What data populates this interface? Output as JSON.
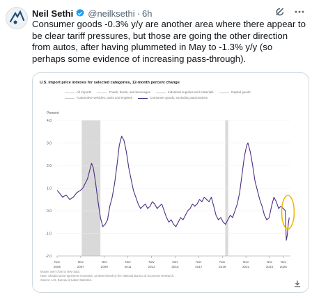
{
  "tweet": {
    "author_name": "Neil Sethi",
    "handle": "@neilksethi",
    "separator": "·",
    "time": "6h",
    "text": "Consumer goods -0.3% y/y are another area where there appear to be clear tariff pressures, but those are going the other direction from autos, after having plummeted in May to -1.3% y/y (so perhaps some evidence of increasing pass-through)."
  },
  "colors": {
    "series_main": "#4b2e83",
    "series_other": "#c8c8c8",
    "recession": "#d9d9d9",
    "highlight": "#f2b705",
    "verified": "#1d9bf0"
  },
  "icons": [
    "avatar",
    "verified-badge-icon",
    "grok-icon",
    "more-icon",
    "download-icon"
  ],
  "chart_data": {
    "type": "line",
    "title": "U.S. import price indexes for selected categories, 12-month percent change",
    "ylabel": "Percent",
    "ylim": [
      -2.0,
      4.0
    ],
    "yticks": [
      4.0,
      3.0,
      2.0,
      1.0,
      0.0,
      -1.0,
      -2.0
    ],
    "ytick_labels": [
      "4.0",
      "3.0",
      "2.0",
      "1.0",
      "0.0",
      "-1.0",
      "-2.0"
    ],
    "xlim": [
      2005.83,
      2025.6
    ],
    "xticks": [
      2005.83,
      2007.83,
      2009.83,
      2011.83,
      2013.83,
      2015.83,
      2017.83,
      2019.83,
      2021.83,
      2023.83,
      2025.0
    ],
    "xtick_labels": [
      [
        "Nov",
        "2005"
      ],
      [
        "Nov",
        "2007"
      ],
      [
        "Nov",
        "2009"
      ],
      [
        "Nov",
        "2011"
      ],
      [
        "Nov",
        "2013"
      ],
      [
        "Nov",
        "2015"
      ],
      [
        "Nov",
        "2017"
      ],
      [
        "Nov",
        "2019"
      ],
      [
        "Nov",
        "2021"
      ],
      [
        "Nov",
        "2023"
      ],
      [
        "Nov",
        "2025"
      ]
    ],
    "recessions": [
      [
        2007.92,
        2009.5
      ],
      [
        2020.08,
        2020.33
      ]
    ],
    "legend": [
      [
        "All imports",
        "Foods, feeds, and beverages",
        "Industrial supplies and materials",
        "Capital goods"
      ],
      [
        "Automotive vehicles, parts and engines",
        "Consumer goods, excluding automotives"
      ]
    ],
    "highlighted_series": "Consumer goods, excluding automotives",
    "series": [
      {
        "name": "Consumer goods, excluding automotives",
        "x": [
          2005.83,
          2006.0,
          2006.3,
          2006.6,
          2006.9,
          2007.2,
          2007.5,
          2007.8,
          2008.0,
          2008.2,
          2008.4,
          2008.6,
          2008.75,
          2008.9,
          2009.1,
          2009.3,
          2009.5,
          2009.7,
          2009.9,
          2010.1,
          2010.3,
          2010.5,
          2010.7,
          2010.9,
          2011.1,
          2011.3,
          2011.5,
          2011.7,
          2011.9,
          2012.1,
          2012.3,
          2012.5,
          2012.7,
          2012.9,
          2013.1,
          2013.3,
          2013.5,
          2013.7,
          2013.9,
          2014.1,
          2014.3,
          2014.5,
          2014.7,
          2014.9,
          2015.1,
          2015.3,
          2015.5,
          2015.7,
          2015.9,
          2016.1,
          2016.3,
          2016.5,
          2016.7,
          2016.9,
          2017.1,
          2017.3,
          2017.5,
          2017.7,
          2017.9,
          2018.1,
          2018.3,
          2018.5,
          2018.7,
          2018.9,
          2019.1,
          2019.3,
          2019.5,
          2019.7,
          2019.9,
          2020.1,
          2020.3,
          2020.5,
          2020.7,
          2020.9,
          2021.1,
          2021.3,
          2021.5,
          2021.7,
          2021.9,
          2022.0,
          2022.2,
          2022.4,
          2022.6,
          2022.8,
          2023.0,
          2023.2,
          2023.4,
          2023.6,
          2023.8,
          2024.0,
          2024.2,
          2024.4,
          2024.6,
          2024.8,
          2025.0,
          2025.17,
          2025.25,
          2025.33,
          2025.42,
          2025.5
        ],
        "values": [
          0.9,
          0.8,
          0.6,
          0.7,
          0.5,
          0.6,
          0.8,
          0.9,
          1.0,
          1.2,
          1.4,
          1.8,
          2.1,
          1.9,
          1.2,
          0.4,
          -0.3,
          -0.7,
          -0.6,
          -0.4,
          0.2,
          0.6,
          1.2,
          2.0,
          2.9,
          3.3,
          3.1,
          2.6,
          1.9,
          1.4,
          0.9,
          0.6,
          0.3,
          0.1,
          0.2,
          0.3,
          0.1,
          0.2,
          0.4,
          0.3,
          0.1,
          0.2,
          0.3,
          0.0,
          -0.3,
          -0.5,
          -0.4,
          -0.6,
          -0.7,
          -0.5,
          -0.3,
          -0.4,
          -0.2,
          0.0,
          0.1,
          0.3,
          0.2,
          0.3,
          0.5,
          0.4,
          0.6,
          0.5,
          0.4,
          0.6,
          0.2,
          -0.2,
          -0.4,
          -0.3,
          -0.5,
          -0.6,
          -0.4,
          -0.2,
          -0.3,
          0.0,
          0.3,
          0.8,
          1.6,
          2.4,
          2.9,
          3.0,
          2.6,
          2.0,
          1.3,
          0.9,
          0.5,
          0.2,
          -0.2,
          -0.4,
          -0.3,
          0.2,
          0.6,
          0.4,
          0.1,
          0.2,
          0.1,
          0.0,
          -1.3,
          -1.1,
          -0.6,
          -0.3
        ]
      }
    ]
  },
  "notes": [
    "Mouse over chart to view data.",
    "Note: Shaded area represents recession, as determined by the National Bureau of Economic Research.",
    "Source: U.S. Bureau of Labor Statistics."
  ]
}
